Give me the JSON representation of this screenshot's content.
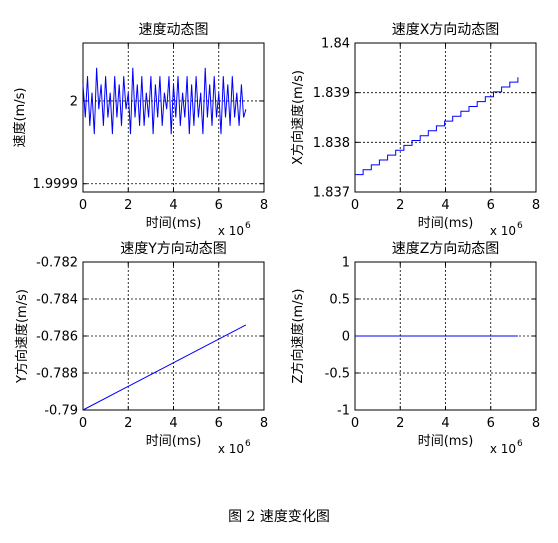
{
  "caption": "图 2  速度变化图",
  "chart_data": [
    {
      "type": "line",
      "title": "速度动态图",
      "xlabel": "时间(ms)",
      "ylabel": "速度(m/s)",
      "xlim": [
        0,
        8000000
      ],
      "ylim": [
        1.99989,
        2.00007
      ],
      "xticks": [
        0,
        2000000,
        4000000,
        6000000,
        8000000
      ],
      "xtick_labels": [
        "0",
        "2",
        "4",
        "6",
        "8"
      ],
      "yticks": [
        1.9999,
        2.0
      ],
      "ytick_labels": [
        "1.9999",
        "2"
      ],
      "x_multiplier": "x 10",
      "x_multiplier_exp": "6",
      "grid": true,
      "color": "#0000ff",
      "series": [
        {
          "x": [
            0,
            100000,
            200000,
            300000,
            400000,
            500000,
            600000,
            700000,
            800000,
            900000,
            1000000,
            1100000,
            1200000,
            1300000,
            1400000,
            1500000,
            1600000,
            1700000,
            1800000,
            1900000,
            2000000,
            2100000,
            2200000,
            2300000,
            2400000,
            2500000,
            2600000,
            2700000,
            2800000,
            2900000,
            3000000,
            3100000,
            3200000,
            3300000,
            3400000,
            3500000,
            3600000,
            3700000,
            3800000,
            3900000,
            4000000,
            4100000,
            4200000,
            4300000,
            4400000,
            4500000,
            4600000,
            4700000,
            4800000,
            4900000,
            5000000,
            5100000,
            5200000,
            5300000,
            5400000,
            5500000,
            5600000,
            5700000,
            5800000,
            5900000,
            6000000,
            6100000,
            6200000,
            6300000,
            6400000,
            6500000,
            6600000,
            6700000,
            6800000,
            6900000,
            7000000,
            7100000,
            7200000
          ],
          "y": [
            2.00002,
            1.99998,
            2.00003,
            1.99997,
            2.00001,
            1.99996,
            2.00004,
            1.99999,
            2.00002,
            1.99997,
            2.00003,
            1.99998,
            2.00001,
            1.99996,
            2.00003,
            1.99998,
            2.00002,
            1.99997,
            2.00003,
            1.99999,
            2.00001,
            1.99996,
            2.00004,
            1.99998,
            2.00002,
            1.99997,
            2.00003,
            1.99997,
            2.00001,
            1.99998,
            2.00003,
            1.99996,
            2.00002,
            1.99998,
            2.00003,
            1.99997,
            2.00001,
            1.99999,
            2.00003,
            1.99996,
            2.00002,
            1.99998,
            2.00003,
            1.99997,
            2.00001,
            1.99998,
            2.00003,
            1.99996,
            2.00002,
            1.99997,
            2.00003,
            1.99998,
            2.00001,
            1.99996,
            2.00004,
            1.99998,
            2.00002,
            1.99997,
            2.00003,
            1.99998,
            2.00001,
            1.99996,
            2.00003,
            1.99998,
            2.00002,
            1.99997,
            2.00003,
            1.99998,
            2.00001,
            1.99997,
            2.00002,
            1.99998,
            1.99999
          ]
        }
      ]
    },
    {
      "type": "line",
      "title": "速度X方向动态图",
      "xlabel": "时间(ms)",
      "ylabel": "X方向速度(m/s)",
      "xlim": [
        0,
        8000000
      ],
      "ylim": [
        1.837,
        1.84
      ],
      "xticks": [
        0,
        2000000,
        4000000,
        6000000,
        8000000
      ],
      "xtick_labels": [
        "0",
        "2",
        "4",
        "6",
        "8"
      ],
      "yticks": [
        1.837,
        1.838,
        1.839,
        1.84
      ],
      "ytick_labels": [
        "1.837",
        "1.838",
        "1.839",
        "1.84"
      ],
      "x_multiplier": "x 10",
      "x_multiplier_exp": "6",
      "grid": true,
      "color": "#0000ff",
      "staircase": true,
      "series": [
        {
          "x": [
            0,
            7200000
          ],
          "y": [
            1.83735,
            1.83931
          ]
        }
      ]
    },
    {
      "type": "line",
      "title": "速度Y方向动态图",
      "xlabel": "时间(ms)",
      "ylabel": "Y方向速度(m/s)",
      "xlim": [
        0,
        8000000
      ],
      "ylim": [
        -0.79,
        -0.782
      ],
      "xticks": [
        0,
        2000000,
        4000000,
        6000000,
        8000000
      ],
      "xtick_labels": [
        "0",
        "2",
        "4",
        "6",
        "8"
      ],
      "yticks": [
        -0.79,
        -0.788,
        -0.786,
        -0.784,
        -0.782
      ],
      "ytick_labels": [
        "-0.79",
        "-0.788",
        "-0.786",
        "-0.784",
        "-0.782"
      ],
      "x_multiplier": "x 10",
      "x_multiplier_exp": "6",
      "grid": true,
      "color": "#0000ff",
      "series": [
        {
          "x": [
            0,
            7200000
          ],
          "y": [
            -0.79,
            -0.7854
          ]
        }
      ]
    },
    {
      "type": "line",
      "title": "速度Z方向动态图",
      "xlabel": "时间(ms)",
      "ylabel": "Z方向速度(m/s)",
      "xlim": [
        0,
        8000000
      ],
      "ylim": [
        -1,
        1
      ],
      "xticks": [
        0,
        2000000,
        4000000,
        6000000,
        8000000
      ],
      "xtick_labels": [
        "0",
        "2",
        "4",
        "6",
        "8"
      ],
      "yticks": [
        -1,
        -0.5,
        0,
        0.5,
        1
      ],
      "ytick_labels": [
        "-1",
        "-0.5",
        "0",
        "0.5",
        "1"
      ],
      "x_multiplier": "x 10",
      "x_multiplier_exp": "6",
      "grid": true,
      "color": "#0000ff",
      "series": [
        {
          "x": [
            0,
            7200000
          ],
          "y": [
            0,
            0
          ]
        }
      ]
    }
  ]
}
